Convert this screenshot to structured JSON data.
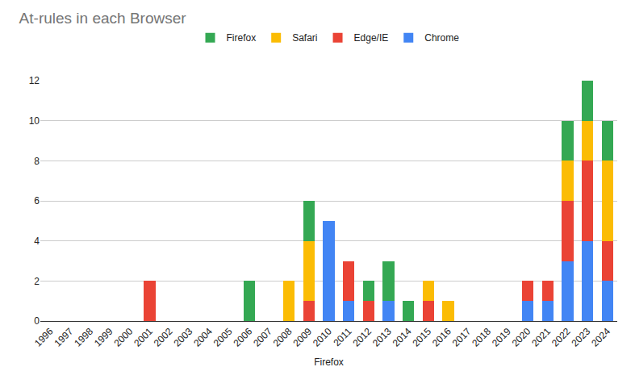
{
  "chart_data": {
    "type": "bar",
    "title": "At-rules in each Browser",
    "x_label": "Firefox",
    "categories": [
      "1996",
      "1997",
      "1998",
      "1999",
      "2000",
      "2001",
      "2002",
      "2003",
      "2004",
      "2005",
      "2006",
      "2007",
      "2008",
      "2009",
      "2010",
      "2011",
      "2012",
      "2013",
      "2014",
      "2015",
      "2016",
      "2017",
      "2018",
      "2019",
      "2020",
      "2021",
      "2022",
      "2023",
      "2024"
    ],
    "series": [
      {
        "name": "Firefox",
        "color": "#34a853",
        "values": [
          0,
          0,
          0,
          0,
          0,
          0,
          0,
          0,
          0,
          0,
          2,
          0,
          0,
          2,
          0,
          0,
          1,
          2,
          1,
          0,
          0,
          0,
          0,
          0,
          0,
          0,
          2,
          2,
          2
        ]
      },
      {
        "name": "Safari",
        "color": "#fbbc04",
        "values": [
          0,
          0,
          0,
          0,
          0,
          0,
          0,
          0,
          0,
          0,
          0,
          0,
          2,
          3,
          0,
          0,
          0,
          0,
          0,
          1,
          1,
          0,
          0,
          0,
          0,
          0,
          2,
          2,
          4
        ]
      },
      {
        "name": "Edge/IE",
        "color": "#ea4335",
        "values": [
          0,
          0,
          0,
          0,
          0,
          2,
          0,
          0,
          0,
          0,
          0,
          0,
          0,
          1,
          0,
          2,
          1,
          0,
          0,
          1,
          0,
          0,
          0,
          0,
          1,
          1,
          3,
          4,
          2
        ]
      },
      {
        "name": "Chrome",
        "color": "#4285f4",
        "values": [
          0,
          0,
          0,
          0,
          0,
          0,
          0,
          0,
          0,
          0,
          0,
          0,
          0,
          0,
          5,
          1,
          0,
          1,
          0,
          0,
          0,
          0,
          0,
          0,
          1,
          1,
          3,
          4,
          2
        ]
      }
    ],
    "ylim": [
      0,
      12
    ],
    "yticks": [
      0,
      2,
      4,
      6,
      8,
      10,
      12
    ],
    "stacked": true,
    "grid": true,
    "legend": "top"
  }
}
